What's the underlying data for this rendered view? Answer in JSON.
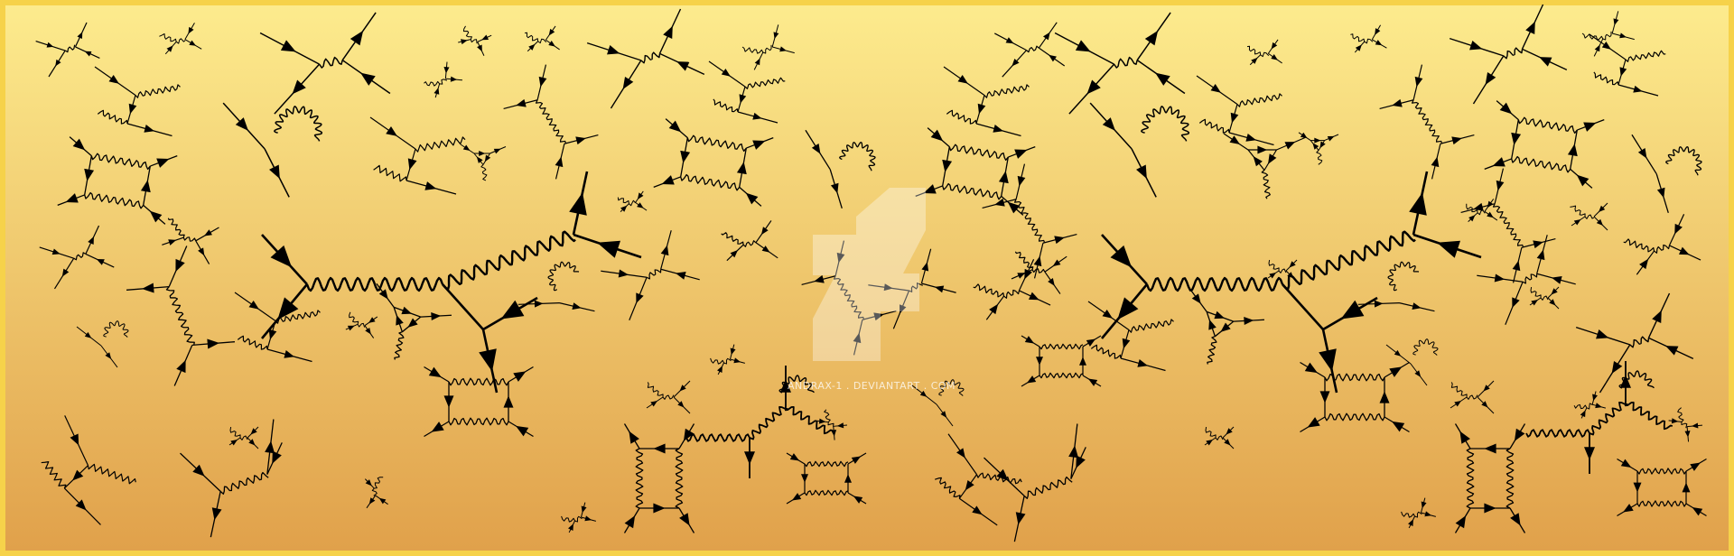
{
  "image": {
    "subject": "feynman-diagrams-wallpaper",
    "background": {
      "top": "#fdec8e",
      "bottom": "#e0a04a",
      "border": "#f6d24a"
    },
    "ink_color": "#000000",
    "watermark": {
      "text": "ANDRAX-1 . DEVIANTART . COM",
      "logo": "deviantart-logo",
      "opacity": 0.35
    }
  }
}
